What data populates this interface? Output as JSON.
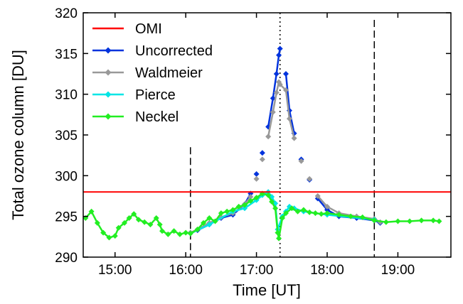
{
  "chart_data": {
    "type": "line",
    "xlabel": "Time [UT]",
    "ylabel": "Total ozone column [DU]",
    "xlim": [
      "14:33",
      "19:45"
    ],
    "ylim": [
      290,
      320
    ],
    "x_ticks": [
      "15:00",
      "16:00",
      "17:00",
      "18:00",
      "19:00"
    ],
    "y_ticks": [
      290,
      295,
      300,
      305,
      310,
      315,
      320
    ],
    "grid": false,
    "legend_position": "top-left",
    "reference_lines": [
      {
        "orientation": "vertical",
        "x": "16:04",
        "style": "dashed"
      },
      {
        "orientation": "vertical",
        "x": "17:20",
        "style": "dotted"
      },
      {
        "orientation": "vertical",
        "x": "18:40",
        "style": "dashed"
      }
    ],
    "series": [
      {
        "name": "OMI",
        "color": "#ff0000",
        "marker": "none",
        "points": [
          [
            "14:33",
            298.0
          ],
          [
            "19:45",
            298.0
          ]
        ]
      },
      {
        "name": "Uncorrected",
        "color": "#0033dd",
        "marker": "diamond",
        "points": [
          [
            "16:04",
            293.0
          ],
          [
            "16:10",
            293.3
          ],
          [
            "16:20",
            294.0
          ],
          [
            "16:30",
            294.8
          ],
          [
            "16:40",
            295.2
          ],
          [
            "16:50",
            296.5
          ],
          [
            "16:55",
            297.8
          ],
          [
            "17:00",
            300.2
          ],
          [
            "17:05",
            302.8
          ],
          [
            "17:10",
            306.0
          ],
          [
            "17:14",
            309.5
          ],
          [
            "17:17",
            312.5
          ],
          [
            "17:19",
            314.8
          ],
          [
            "17:20",
            315.6
          ],
          [
            "17:25",
            312.5
          ],
          [
            "17:28",
            308.0
          ],
          [
            "17:32",
            305.2
          ],
          [
            "17:38",
            302.0
          ],
          [
            "17:45",
            299.5
          ],
          [
            "17:52",
            297.2
          ],
          [
            "18:00",
            295.8
          ],
          [
            "18:10",
            295.0
          ],
          [
            "18:25",
            294.8
          ],
          [
            "18:40",
            294.5
          ],
          [
            "18:45",
            294.2
          ]
        ]
      },
      {
        "name": "Waldmeier",
        "color": "#999999",
        "marker": "diamond",
        "points": [
          [
            "16:04",
            293.0
          ],
          [
            "16:10",
            293.4
          ],
          [
            "16:20",
            294.2
          ],
          [
            "16:30",
            294.9
          ],
          [
            "16:40",
            295.4
          ],
          [
            "16:50",
            296.5
          ],
          [
            "16:55",
            297.4
          ],
          [
            "17:00",
            299.6
          ],
          [
            "17:05",
            302.0
          ],
          [
            "17:10",
            304.8
          ],
          [
            "17:14",
            307.8
          ],
          [
            "17:17",
            310.2
          ],
          [
            "17:19",
            311.5
          ],
          [
            "17:20",
            311.2
          ],
          [
            "17:25",
            310.5
          ],
          [
            "17:28",
            307.0
          ],
          [
            "17:32",
            304.6
          ],
          [
            "17:38",
            301.8
          ],
          [
            "17:45",
            299.6
          ],
          [
            "17:52",
            297.5
          ],
          [
            "18:00",
            296.2
          ],
          [
            "18:10",
            295.4
          ],
          [
            "18:25",
            295.0
          ],
          [
            "18:40",
            294.7
          ],
          [
            "18:45",
            294.3
          ]
        ]
      },
      {
        "name": "Pierce",
        "color": "#00e5e5",
        "marker": "diamond",
        "points": [
          [
            "16:04",
            292.9
          ],
          [
            "16:20",
            294.0
          ],
          [
            "16:40",
            295.6
          ],
          [
            "16:50",
            296.0
          ],
          [
            "17:00",
            297.0
          ],
          [
            "17:05",
            297.6
          ],
          [
            "17:10",
            298.0
          ],
          [
            "17:13",
            297.4
          ],
          [
            "17:16",
            296.6
          ],
          [
            "17:18",
            293.4
          ],
          [
            "17:22",
            295.0
          ],
          [
            "17:25",
            295.6
          ],
          [
            "17:28",
            296.2
          ],
          [
            "17:32",
            296.0
          ],
          [
            "17:40",
            295.6
          ],
          [
            "18:00",
            295.2
          ],
          [
            "18:40",
            294.6
          ]
        ]
      },
      {
        "name": "Neckel",
        "color": "#22ee22",
        "marker": "diamond",
        "points": [
          [
            "14:35",
            294.8
          ],
          [
            "14:40",
            295.6
          ],
          [
            "14:45",
            294.2
          ],
          [
            "14:50",
            293.0
          ],
          [
            "14:55",
            292.4
          ],
          [
            "15:00",
            292.6
          ],
          [
            "15:03",
            293.6
          ],
          [
            "15:08",
            294.2
          ],
          [
            "15:12",
            294.8
          ],
          [
            "15:16",
            295.3
          ],
          [
            "15:20",
            294.6
          ],
          [
            "15:25",
            294.3
          ],
          [
            "15:30",
            294.0
          ],
          [
            "15:35",
            294.8
          ],
          [
            "15:38",
            294.0
          ],
          [
            "15:40",
            293.2
          ],
          [
            "15:45",
            292.8
          ],
          [
            "15:50",
            293.2
          ],
          [
            "15:55",
            292.8
          ],
          [
            "16:00",
            293.0
          ],
          [
            "16:04",
            292.9
          ],
          [
            "16:10",
            293.4
          ],
          [
            "16:15",
            294.2
          ],
          [
            "16:20",
            294.8
          ],
          [
            "16:25",
            294.4
          ],
          [
            "16:30",
            295.4
          ],
          [
            "16:35",
            295.6
          ],
          [
            "16:40",
            295.8
          ],
          [
            "16:45",
            296.2
          ],
          [
            "16:50",
            296.4
          ],
          [
            "16:55",
            296.9
          ],
          [
            "17:00",
            297.3
          ],
          [
            "17:05",
            297.8
          ],
          [
            "17:10",
            297.6
          ],
          [
            "17:13",
            296.8
          ],
          [
            "17:16",
            296.0
          ],
          [
            "17:18",
            293.0
          ],
          [
            "17:19",
            292.3
          ],
          [
            "17:22",
            294.8
          ],
          [
            "17:25",
            295.4
          ],
          [
            "17:30",
            296.0
          ],
          [
            "17:35",
            295.6
          ],
          [
            "17:40",
            295.8
          ],
          [
            "17:45",
            295.5
          ],
          [
            "17:50",
            295.4
          ],
          [
            "17:55",
            295.3
          ],
          [
            "18:00",
            295.4
          ],
          [
            "18:10",
            295.2
          ],
          [
            "18:20",
            295.0
          ],
          [
            "18:30",
            294.9
          ],
          [
            "18:40",
            294.5
          ],
          [
            "18:50",
            294.3
          ],
          [
            "19:00",
            294.4
          ],
          [
            "19:10",
            294.4
          ],
          [
            "19:20",
            294.5
          ],
          [
            "19:30",
            294.5
          ],
          [
            "19:35",
            294.4
          ]
        ]
      }
    ]
  }
}
